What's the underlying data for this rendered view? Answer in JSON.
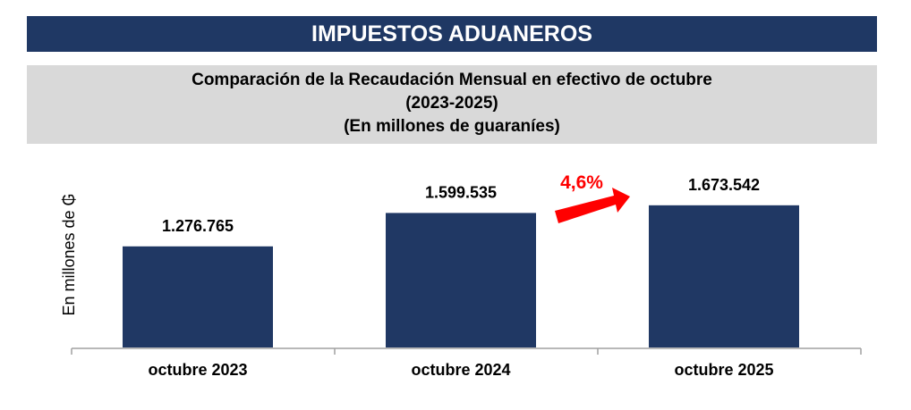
{
  "header": {
    "title": "IMPUESTOS ADUANEROS"
  },
  "subtitle": {
    "line1": "Comparación de la Recaudación Mensual en efectivo de octubre",
    "line2": "(2023-2025)",
    "line3": "(En millones de guaraníes)"
  },
  "colors": {
    "bar": "#203864",
    "header": "#1f3864",
    "subtitle_bg": "#d9d9d9",
    "arrow": "#ff0000"
  },
  "chart_data": {
    "type": "bar",
    "title": "Comparación de la Recaudación Mensual en efectivo de octubre (2023-2025) (En millones de guaraníes)",
    "xlabel": "",
    "ylabel": "En millones de ₲",
    "categories": [
      "octubre 2023",
      "octubre 2024",
      "octubre 2025"
    ],
    "values": [
      1276765,
      1599535,
      1673542
    ],
    "data_labels": [
      "1.276.765",
      "1.599.535",
      "1.673.542"
    ],
    "ylim": [
      300000,
      2000000
    ],
    "grid": false,
    "annotation": {
      "text": "4,6%",
      "from": "octubre 2024",
      "to": "octubre 2025"
    }
  }
}
